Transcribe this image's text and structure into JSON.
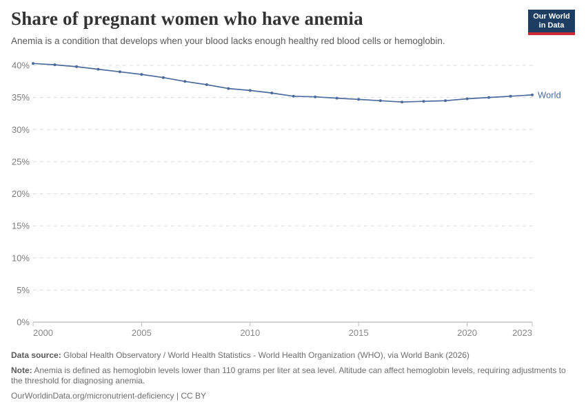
{
  "header": {
    "title": "Share of pregnant women who have anemia",
    "subtitle": "Anemia is a condition that develops when your blood lacks enough healthy red blood cells or hemoglobin.",
    "logo": {
      "line1": "Our World",
      "line2": "in Data",
      "bg_color": "#1d3d63",
      "bar_color": "#cc2a36"
    }
  },
  "chart_data": {
    "type": "line",
    "title": "Share of pregnant women who have anemia",
    "xlabel": "",
    "ylabel": "",
    "xlim": [
      2000,
      2023
    ],
    "ylim": [
      0,
      40
    ],
    "grid": "horizontal-dashed",
    "legend_position": "end-of-line",
    "x_ticks": [
      2000,
      2005,
      2010,
      2015,
      2020,
      2023
    ],
    "y_ticks": [
      {
        "value": 0,
        "label": "0%"
      },
      {
        "value": 5,
        "label": "5%"
      },
      {
        "value": 10,
        "label": "10%"
      },
      {
        "value": 15,
        "label": "15%"
      },
      {
        "value": 20,
        "label": "20%"
      },
      {
        "value": 25,
        "label": "25%"
      },
      {
        "value": 30,
        "label": "30%"
      },
      {
        "value": 35,
        "label": "35%"
      },
      {
        "value": 40,
        "label": "40%"
      }
    ],
    "series": [
      {
        "name": "World",
        "color": "#4c6a9c",
        "x": [
          2000,
          2001,
          2002,
          2003,
          2004,
          2005,
          2006,
          2007,
          2008,
          2009,
          2010,
          2011,
          2012,
          2013,
          2014,
          2015,
          2016,
          2017,
          2018,
          2019,
          2020,
          2021,
          2022,
          2023
        ],
        "values": [
          40.3,
          40.1,
          39.8,
          39.4,
          39.0,
          38.6,
          38.1,
          37.5,
          37.0,
          36.4,
          36.1,
          35.7,
          35.2,
          35.1,
          34.9,
          34.7,
          34.5,
          34.3,
          34.4,
          34.5,
          34.8,
          35.0,
          35.2,
          35.4
        ]
      }
    ]
  },
  "footer": {
    "data_source_label": "Data source:",
    "data_source": "Global Health Observatory / World Health Statistics - World Health Organization (WHO), via World Bank (2026)",
    "note_label": "Note:",
    "note": "Anemia is defined as hemoglobin levels lower than 110 grams per liter at sea level. Altitude can affect hemoglobin levels, requiring adjustments to the threshold for diagnosing anemia.",
    "link": "OurWorldinData.org/micronutrient-deficiency | CC BY"
  }
}
